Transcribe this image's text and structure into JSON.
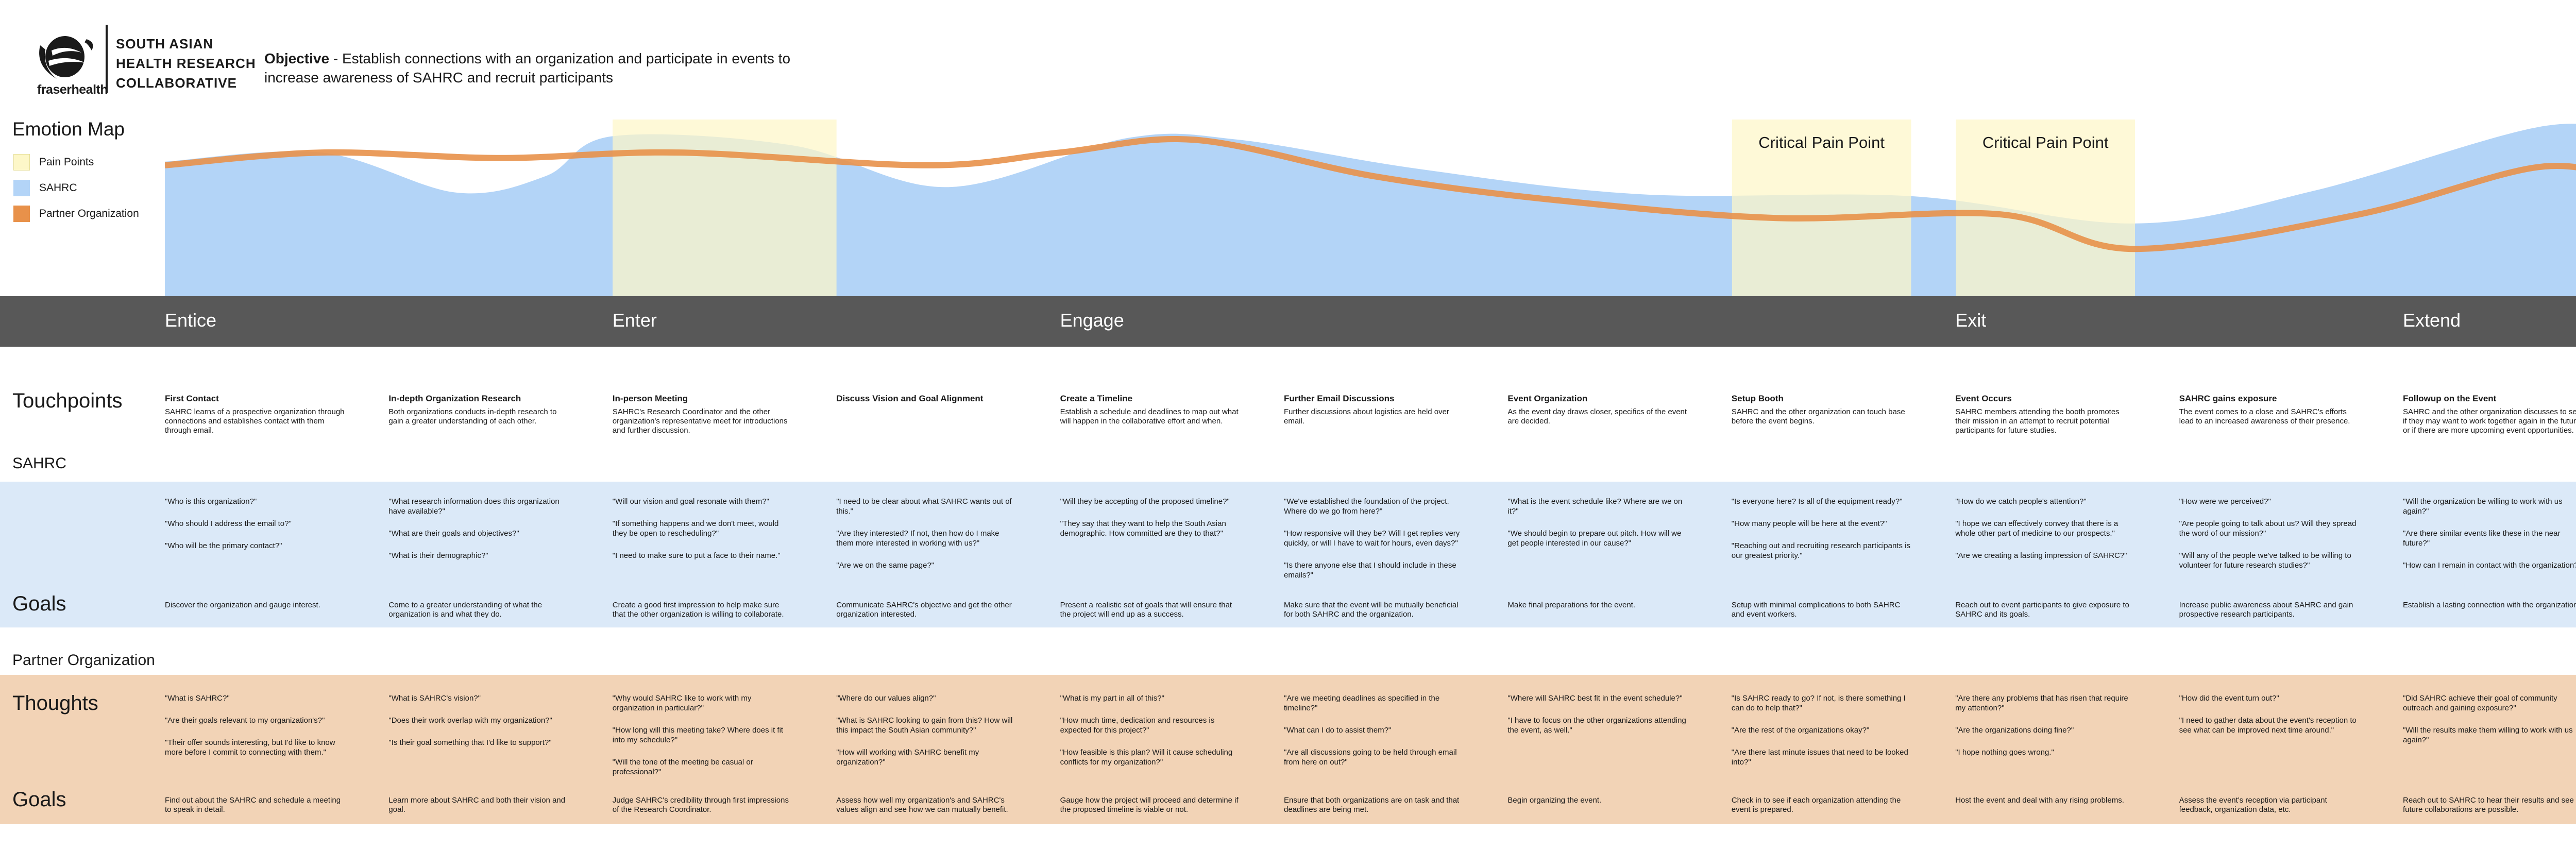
{
  "header": {
    "logo_word": "fraserhealth",
    "org_name": "SOUTH ASIAN\nHEALTH RESEARCH\nCOLLABORATIVE",
    "objective_label": "Objective",
    "objective_text": " - Establish connections with an organization and participate in events to increase awareness of SAHRC and recruit participants"
  },
  "emotion_map": {
    "title": "Emotion Map",
    "legend": [
      {
        "label": "Pain Points",
        "color": "#fdf7c8"
      },
      {
        "label": "SAHRC",
        "color": "#b3d4f7"
      },
      {
        "label": "Partner Organization",
        "color": "#e8914a"
      }
    ],
    "critical_label_1": "Critical Pain Point",
    "critical_label_2": "Critical Pain Point"
  },
  "chart_data": {
    "type": "area",
    "x_columns": 11,
    "y_scale": "relative emotion (0 = low, 100 = high)",
    "series": [
      {
        "name": "SAHRC",
        "kind": "area",
        "color": "#b3d4f7",
        "points": [
          [
            0,
            74
          ],
          [
            0.7,
            79
          ],
          [
            1.3,
            57
          ],
          [
            1.7,
            66
          ],
          [
            2.0,
            88
          ],
          [
            2.8,
            83
          ],
          [
            3.5,
            60
          ],
          [
            4.3,
            87
          ],
          [
            4.8,
            86
          ],
          [
            5.6,
            70
          ],
          [
            6.6,
            56
          ],
          [
            7.8,
            55
          ],
          [
            8.8,
            40
          ],
          [
            9.6,
            58
          ],
          [
            10.6,
            93
          ],
          [
            11.0,
            90
          ]
        ]
      },
      {
        "name": "Partner Organization",
        "kind": "line",
        "color": "#e8914a",
        "points": [
          [
            0,
            72
          ],
          [
            0.7,
            79
          ],
          [
            1.5,
            76
          ],
          [
            2.3,
            79
          ],
          [
            3.4,
            72
          ],
          [
            4.0,
            79
          ],
          [
            4.6,
            86
          ],
          [
            5.4,
            66
          ],
          [
            6.2,
            53
          ],
          [
            7.2,
            43
          ],
          [
            8.2,
            45
          ],
          [
            8.8,
            26
          ],
          [
            9.8,
            45
          ],
          [
            10.6,
            71
          ],
          [
            11.0,
            64
          ]
        ]
      }
    ],
    "pain_points": [
      [
        2.0,
        3.0
      ],
      [
        7.0,
        7.8
      ],
      [
        8.0,
        8.8
      ]
    ]
  },
  "stages": [
    {
      "label": "Entice",
      "col": 0
    },
    {
      "label": "Enter",
      "col": 2
    },
    {
      "label": "Engage",
      "col": 4
    },
    {
      "label": "Exit",
      "col": 8
    },
    {
      "label": "Extend",
      "col": 10
    }
  ],
  "labels": {
    "touchpoints": "Touchpoints",
    "sahrc": "SAHRC",
    "goals_sahrc": "Goals",
    "partner": "Partner Organization",
    "thoughts": "Thoughts",
    "goals_partner": "Goals"
  },
  "columns": [
    {
      "title": "First Contact",
      "desc": "SAHRC learns of a prospective organization through connections and establishes contact with them through email.",
      "sahrc_q": [
        "\"Who is this organization?\"",
        "\"Who should I address the email to?\"",
        "\"Who will be the primary contact?\""
      ],
      "sahrc_goal": "Discover the organization and gauge interest.",
      "partner_q": [
        "\"What is SAHRC?\"",
        "\"Are their goals relevant to my organization's?\"",
        "\"Their offer sounds interesting, but I'd like to know more before I commit to connecting with them.\""
      ],
      "partner_goal": "Find out about the SAHRC and schedule a meeting to speak in detail."
    },
    {
      "title": "In-depth Organization Research",
      "desc": "Both organizations conducts in-depth research to gain a greater understanding of each other.",
      "sahrc_q": [
        "\"What research information does this organization have available?\"",
        "\"What are their goals and objectives?\"",
        "\"What is their demographic?\""
      ],
      "sahrc_goal": "Come to a greater understanding of what the organization is and what they do.",
      "partner_q": [
        "\"What is SAHRC's vision?\"",
        "\"Does their work overlap with my organization?\"",
        "\"Is their goal something that I'd like to support?\""
      ],
      "partner_goal": "Learn more about SAHRC and both their vision and goal."
    },
    {
      "title": "In-person Meeting",
      "desc": "SAHRC's Research Coordinator and the other organization's representative meet for introductions and further discussion.",
      "sahrc_q": [
        "\"Will our vision and goal resonate with them?\"",
        "\"If something happens and we don't meet, would they be open to rescheduling?\"",
        "\"I need to make sure to put a face to their name.\""
      ],
      "sahrc_goal": "Create a good first impression to help make sure that the other organization is willing to collaborate.",
      "partner_q": [
        "\"Why would SAHRC like to work with my organization in particular?\"",
        "\"How long will this meeting take? Where does it fit into my schedule?\"",
        "\"Will the tone of the meeting be casual or professional?\""
      ],
      "partner_goal": "Judge SAHRC's credibility through first impressions of the Research Coordinator."
    },
    {
      "title": "Discuss Vision and Goal Alignment",
      "desc": "",
      "sahrc_q": [
        "\"I need to be clear about what SAHRC wants out of this.\"",
        "\"Are they interested? If not, then how do I make them more interested in working with us?\"",
        "\"Are we on the same page?\""
      ],
      "sahrc_goal": "Communicate SAHRC's objective and get the other organization interested.",
      "partner_q": [
        "\"Where do our values align?\"",
        "\"What is SAHRC looking to gain from this? How will this impact the South Asian community?\"",
        "\"How will working with SAHRC benefit my organization?\""
      ],
      "partner_goal": "Assess how well my organization's and SAHRC's values align and see how we can mutually benefit."
    },
    {
      "title": "Create a Timeline",
      "desc": "Establish a schedule and deadlines to map out what will happen in the collaborative effort and when.",
      "sahrc_q": [
        "\"Will they be accepting of the proposed timeline?\"",
        "\"They say that they want to help the South Asian demographic. How committed are they to that?\""
      ],
      "sahrc_goal": "Present a realistic set of goals that will ensure that the project will end up as a success.",
      "partner_q": [
        "\"What is my part in all of this?\"",
        "\"How much time, dedication and resources is expected for this project?\"",
        "\"How feasible is this plan? Will it cause scheduling conflicts for my organization?\""
      ],
      "partner_goal": "Gauge how the project will proceed and determine if the proposed timeline is viable or not."
    },
    {
      "title": "Further Email Discussions",
      "desc": "Further discussions about logistics are held over email.",
      "sahrc_q": [
        "\"We've established the foundation of the project. Where do we go from here?\"",
        "\"How responsive will they be? Will I get replies very quickly, or will I have to wait for hours, even days?\"",
        "\"Is there anyone else that I should include in these emails?\""
      ],
      "sahrc_goal": "Make sure that the event will be mutually beneficial for both SAHRC and the organization.",
      "partner_q": [
        "\"Are we meeting deadlines as specified in the timeline?\"",
        "\"What can I do to assist them?\"",
        "\"Are all discussions going to be held through email from here on out?\""
      ],
      "partner_goal": "Ensure that both organizations are on task and that deadlines are being met."
    },
    {
      "title": "Event Organization",
      "desc": "As the event day draws closer, specifics of the event are decided.",
      "sahrc_q": [
        "\"What is the event schedule like? Where are we on it?\"",
        "\"We should begin to prepare out pitch. How will we get people interested in our cause?\""
      ],
      "sahrc_goal": "Make final preparations for the event.",
      "partner_q": [
        "\"Where will SAHRC best fit in the event schedule?\"",
        "\"I have to focus on the other organizations attending the event, as well.\""
      ],
      "partner_goal": "Begin organizing the event."
    },
    {
      "title": "Setup Booth",
      "desc": "SAHRC and the other organization can touch base before the event begins.",
      "sahrc_q": [
        "\"Is everyone here? Is all of the equipment ready?\"",
        "\"How many people will be here at the event?\"",
        "\"Reaching out and recruiting research participants is our greatest priority.\""
      ],
      "sahrc_goal": "Setup with minimal complications to both SAHRC and event workers.",
      "partner_q": [
        "\"Is SAHRC ready to go? If not, is there something I can do to help that?\"",
        "\"Are the rest of the organizations okay?\"",
        "\"Are there last minute issues that need to be looked into?\""
      ],
      "partner_goal": "Check in to see if each organization attending the event is prepared."
    },
    {
      "title": "Event Occurs",
      "desc": "SAHRC members attending the booth promotes their mission in an attempt to recruit potential participants for future studies.",
      "sahrc_q": [
        "\"How do we catch people's attention?\"",
        "\"I hope we can effectively convey that there is a whole other part of medicine to our prospects.\"",
        "\"Are we creating a lasting impression of SAHRC?\""
      ],
      "sahrc_goal": "Reach out to event participants to give exposure to SAHRC and its goals.",
      "partner_q": [
        "\"Are there any problems that has risen that require my attention?\"",
        "\"Are the organizations doing fine?\"",
        "\"I hope nothing goes wrong.\""
      ],
      "partner_goal": "Host the event and deal with any rising problems."
    },
    {
      "title": "SAHRC gains exposure",
      "desc": "The event comes to a close and SAHRC's efforts lead to an increased awareness of their presence.",
      "sahrc_q": [
        "\"How were we perceived?\"",
        "\"Are people going to talk about us? Will they spread the word of our mission?\"",
        "\"Will any of the people we've talked to be willing to volunteer for future research studies?\""
      ],
      "sahrc_goal": "Increase public awareness about SAHRC and gain prospective research participants.",
      "partner_q": [
        "\"How did the event turn out?\"",
        "\"I need to gather data about the event's reception to see what can be improved next time around.\""
      ],
      "partner_goal": "Assess the event's reception via participant feedback, organization data, etc."
    },
    {
      "title": "Followup on the Event",
      "desc": "SAHRC and the other organization discusses to see if they may want to work together again in the future, or if there are more upcoming event opportunities.",
      "sahrc_q": [
        "\"Will the organization be willing to work with us again?\"",
        "\"Are there similar events like these in the near future?\"",
        "\"How can I remain in contact with the organization?\""
      ],
      "sahrc_goal": "Establish a lasting connection with the organization.",
      "partner_q": [
        "\"Did SAHRC achieve their goal of community outreach and gaining exposure?\"",
        "\"Will the results make them willing to work with us again?\""
      ],
      "partner_goal": "Reach out to SAHRC to hear their results and see if future collaborations are possible."
    }
  ]
}
